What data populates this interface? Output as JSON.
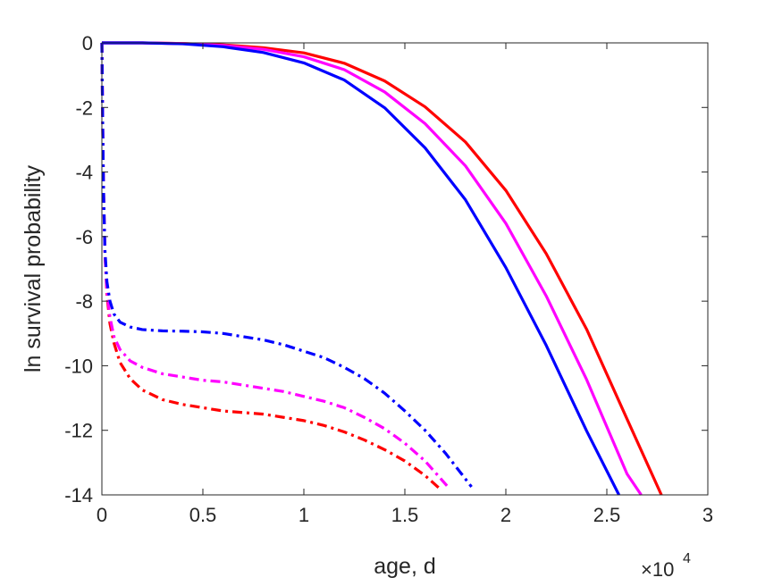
{
  "chart_data": {
    "type": "line",
    "xlabel": "age, d",
    "ylabel": "ln survival probability",
    "x_exponent_base": "×10",
    "x_exponent_power": "4",
    "xlim": [
      0,
      30000
    ],
    "ylim": [
      -14,
      0
    ],
    "xticks": [
      0,
      5000,
      10000,
      15000,
      20000,
      25000,
      30000
    ],
    "xtick_labels": [
      "0",
      "0.5",
      "1",
      "1.5",
      "2",
      "2.5",
      "3"
    ],
    "yticks": [
      0,
      -2,
      -4,
      -6,
      -8,
      -10,
      -12,
      -14
    ],
    "ytick_labels": [
      "0",
      "-2",
      "-4",
      "-6",
      "-8",
      "-10",
      "-12",
      "-14"
    ],
    "grid": false,
    "series": [
      {
        "color": "#ff0000",
        "line": "solid",
        "x": [
          0,
          2000,
          4000,
          6000,
          8000,
          10000,
          12000,
          14000,
          16000,
          18000,
          20000,
          22000,
          24000,
          26000,
          27700
        ],
        "y": [
          0,
          0,
          -0.02,
          -0.06,
          -0.15,
          -0.31,
          -0.63,
          -1.18,
          -1.98,
          -3.07,
          -4.57,
          -6.53,
          -8.87,
          -11.65,
          -14
        ]
      },
      {
        "color": "#ff00ff",
        "line": "solid",
        "x": [
          0,
          2000,
          4000,
          6000,
          8000,
          10000,
          12000,
          14000,
          16000,
          18000,
          20000,
          22000,
          24000,
          26000,
          26700
        ],
        "y": [
          0,
          0,
          -0.02,
          -0.08,
          -0.2,
          -0.43,
          -0.83,
          -1.52,
          -2.5,
          -3.81,
          -5.59,
          -7.84,
          -10.43,
          -13.35,
          -14
        ]
      },
      {
        "color": "#0000ff",
        "line": "solid",
        "x": [
          0,
          2000,
          4000,
          6000,
          8000,
          10000,
          12000,
          14000,
          16000,
          18000,
          20000,
          22000,
          24000,
          25600
        ],
        "y": [
          0,
          0,
          -0.03,
          -0.12,
          -0.3,
          -0.62,
          -1.15,
          -2.01,
          -3.25,
          -4.86,
          -6.96,
          -9.37,
          -12.02,
          -14
        ]
      },
      {
        "color": "#ff0000",
        "line": "dashdot",
        "x": [
          0,
          40,
          80,
          150,
          250,
          400,
          600,
          900,
          1400,
          2000,
          3000,
          4000,
          5000,
          6000,
          7000,
          8000,
          9000,
          10000,
          11000,
          12000,
          13000,
          14000,
          15000,
          16000,
          16800
        ],
        "y": [
          0,
          -2.5,
          -4.5,
          -6.5,
          -7.8,
          -8.7,
          -9.3,
          -9.9,
          -10.4,
          -10.75,
          -11.05,
          -11.2,
          -11.3,
          -11.4,
          -11.45,
          -11.5,
          -11.6,
          -11.7,
          -11.85,
          -12.05,
          -12.3,
          -12.6,
          -12.95,
          -13.4,
          -13.85
        ]
      },
      {
        "color": "#ff00ff",
        "line": "dashdot",
        "x": [
          0,
          40,
          80,
          150,
          250,
          400,
          600,
          900,
          1400,
          2000,
          3000,
          4000,
          5000,
          6000,
          7000,
          8000,
          9000,
          10000,
          11000,
          12000,
          13000,
          14000,
          15000,
          16000,
          17200
        ],
        "y": [
          0,
          -2.5,
          -4.5,
          -6.5,
          -7.7,
          -8.5,
          -9.1,
          -9.5,
          -9.85,
          -10.05,
          -10.25,
          -10.35,
          -10.45,
          -10.5,
          -10.6,
          -10.7,
          -10.8,
          -10.95,
          -11.1,
          -11.3,
          -11.6,
          -11.95,
          -12.4,
          -12.95,
          -13.8
        ]
      },
      {
        "color": "#0000ff",
        "line": "dashdot",
        "x": [
          0,
          40,
          80,
          150,
          250,
          400,
          600,
          900,
          1400,
          2000,
          3000,
          4000,
          5000,
          6000,
          7000,
          8000,
          9000,
          10000,
          11000,
          12000,
          13000,
          14000,
          15000,
          16000,
          17000,
          18300
        ],
        "y": [
          0,
          -2.5,
          -4.5,
          -6.4,
          -7.4,
          -8.0,
          -8.4,
          -8.65,
          -8.8,
          -8.88,
          -8.92,
          -8.93,
          -8.95,
          -9.0,
          -9.1,
          -9.2,
          -9.35,
          -9.55,
          -9.75,
          -10.05,
          -10.4,
          -10.85,
          -11.4,
          -12.0,
          -12.7,
          -13.75
        ]
      }
    ]
  }
}
